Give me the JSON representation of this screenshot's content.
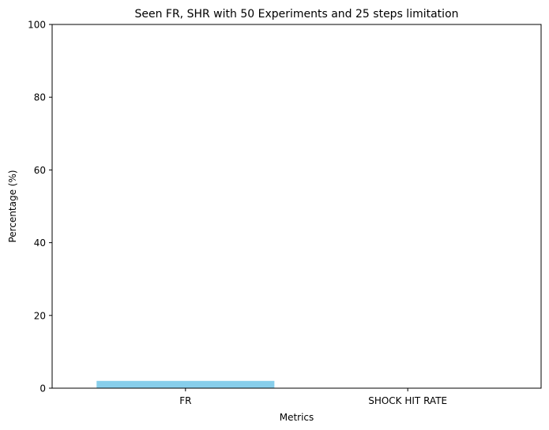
{
  "chart_data": {
    "type": "bar",
    "title": "Seen FR, SHR with 50 Experiments and 25 steps limitation",
    "xlabel": "Metrics",
    "ylabel": "Percentage (%)",
    "categories": [
      "FR",
      "SHOCK HIT RATE"
    ],
    "values": [
      2,
      0
    ],
    "ylim": [
      0,
      100
    ],
    "yticks": [
      0,
      20,
      40,
      60,
      80,
      100
    ],
    "bar_color": "#87ceeb",
    "grid": false,
    "legend": "none"
  }
}
